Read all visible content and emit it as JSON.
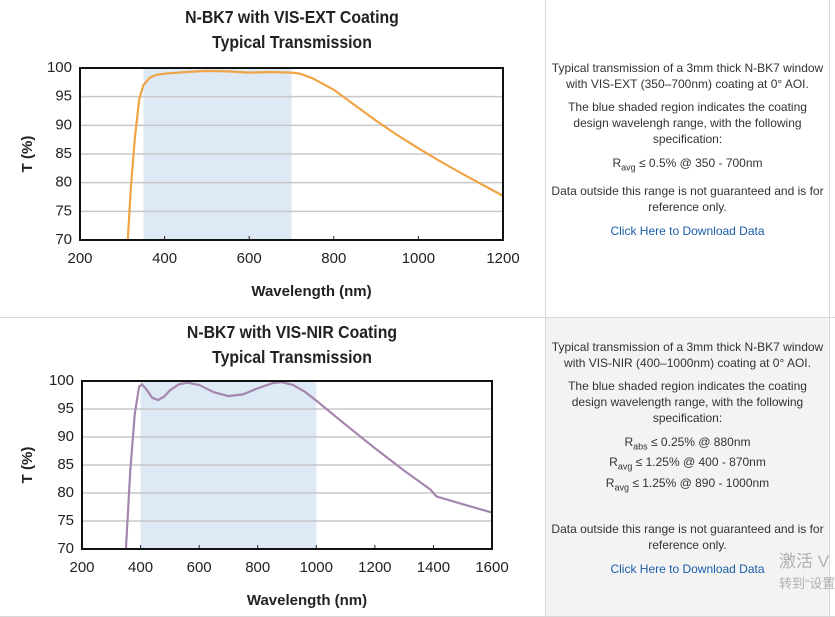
{
  "chart_data": [
    {
      "type": "line",
      "title": "N-BK7 with VIS-EXT Coating",
      "subtitle": "Typical Transmission",
      "x_label": "Wavelength (nm)",
      "y_label": "T (%)",
      "xlim": [
        200,
        1200
      ],
      "xticks": [
        200,
        400,
        600,
        800,
        1000,
        1200
      ],
      "ylim": [
        70,
        100
      ],
      "yticks": [
        70,
        75,
        80,
        85,
        90,
        95,
        100
      ],
      "grid": true,
      "shaded_range": [
        350,
        700
      ],
      "shade_color": "#dde9f5",
      "x": [
        313,
        320,
        330,
        340,
        350,
        365,
        380,
        400,
        450,
        500,
        550,
        600,
        650,
        700,
        720,
        750,
        800,
        850,
        900,
        950,
        1000,
        1050,
        1100,
        1150,
        1200
      ],
      "series": [
        {
          "color": "#f0a445",
          "values": [
            70,
            79,
            88,
            94.5,
            97,
            98.3,
            98.8,
            99,
            99.3,
            99.5,
            99.4,
            99.2,
            99.3,
            99.2,
            99,
            98.2,
            96.2,
            93.5,
            90.8,
            88.3,
            86,
            83.8,
            81.7,
            79.7,
            77.7
          ]
        }
      ]
    },
    {
      "type": "line",
      "title": "N-BK7 with VIS-NIR Coating",
      "subtitle": "Typical Transmission",
      "x_label": "Wavelength (nm)",
      "y_label": "T (%)",
      "xlim": [
        200,
        1600
      ],
      "xticks": [
        200,
        400,
        600,
        800,
        1000,
        1200,
        1400,
        1600
      ],
      "ylim": [
        70,
        100
      ],
      "yticks": [
        70,
        75,
        80,
        85,
        90,
        95,
        100
      ],
      "grid": true,
      "shaded_range": [
        400,
        1000
      ],
      "shade_color": "#dde9f5",
      "x": [
        350,
        365,
        380,
        395,
        405,
        420,
        440,
        460,
        480,
        500,
        530,
        560,
        600,
        650,
        700,
        750,
        800,
        850,
        880,
        920,
        960,
        1000,
        1100,
        1200,
        1300,
        1390,
        1410,
        1500,
        1600
      ],
      "series": [
        {
          "color": "#a586ae",
          "values": [
            70,
            84,
            94,
            99,
            99.4,
            98.5,
            97,
            96.6,
            97.2,
            98.3,
            99.4,
            99.7,
            99.3,
            98,
            97.3,
            97.6,
            98.7,
            99.6,
            99.8,
            99.3,
            98.1,
            96.5,
            92.2,
            88,
            84,
            80.6,
            79.4,
            78,
            76.5
          ]
        }
      ]
    }
  ],
  "panels": [
    {
      "paragraphs": [
        "Typical transmission of a 3mm thick N-BK7 window with VIS-EXT (350–700nm) coating at 0° AOI.",
        "The blue shaded region indicates the coating design wavelengh range, with the following specification:"
      ],
      "specs": [
        {
          "symbol": "R",
          "sub": "avg",
          "text": "≤ 0.5% @ 350 - 700nm"
        }
      ],
      "note": "Data outside this range is not guaranteed and is for reference only.",
      "link": "Click Here to Download Data"
    },
    {
      "paragraphs": [
        "Typical transmission of a 3mm thick N-BK7 window with VIS-NIR (400–1000nm) coating at 0° AOI.",
        "The blue shaded region indicates the coating design wavelength range, with the following specification:"
      ],
      "specs": [
        {
          "symbol": "R",
          "sub": "abs",
          "text": "≤ 0.25% @ 880nm"
        },
        {
          "symbol": "R",
          "sub": "avg",
          "text": "≤ 1.25% @ 400 - 870nm"
        },
        {
          "symbol": "R",
          "sub": "avg",
          "text": "≤ 1.25% @ 890 - 1000nm"
        }
      ],
      "note": "Data outside this range is not guaranteed and is for reference only.",
      "link": "Click Here to Download Data"
    }
  ],
  "watermark": [
    "激活 V",
    "转到“设置"
  ]
}
